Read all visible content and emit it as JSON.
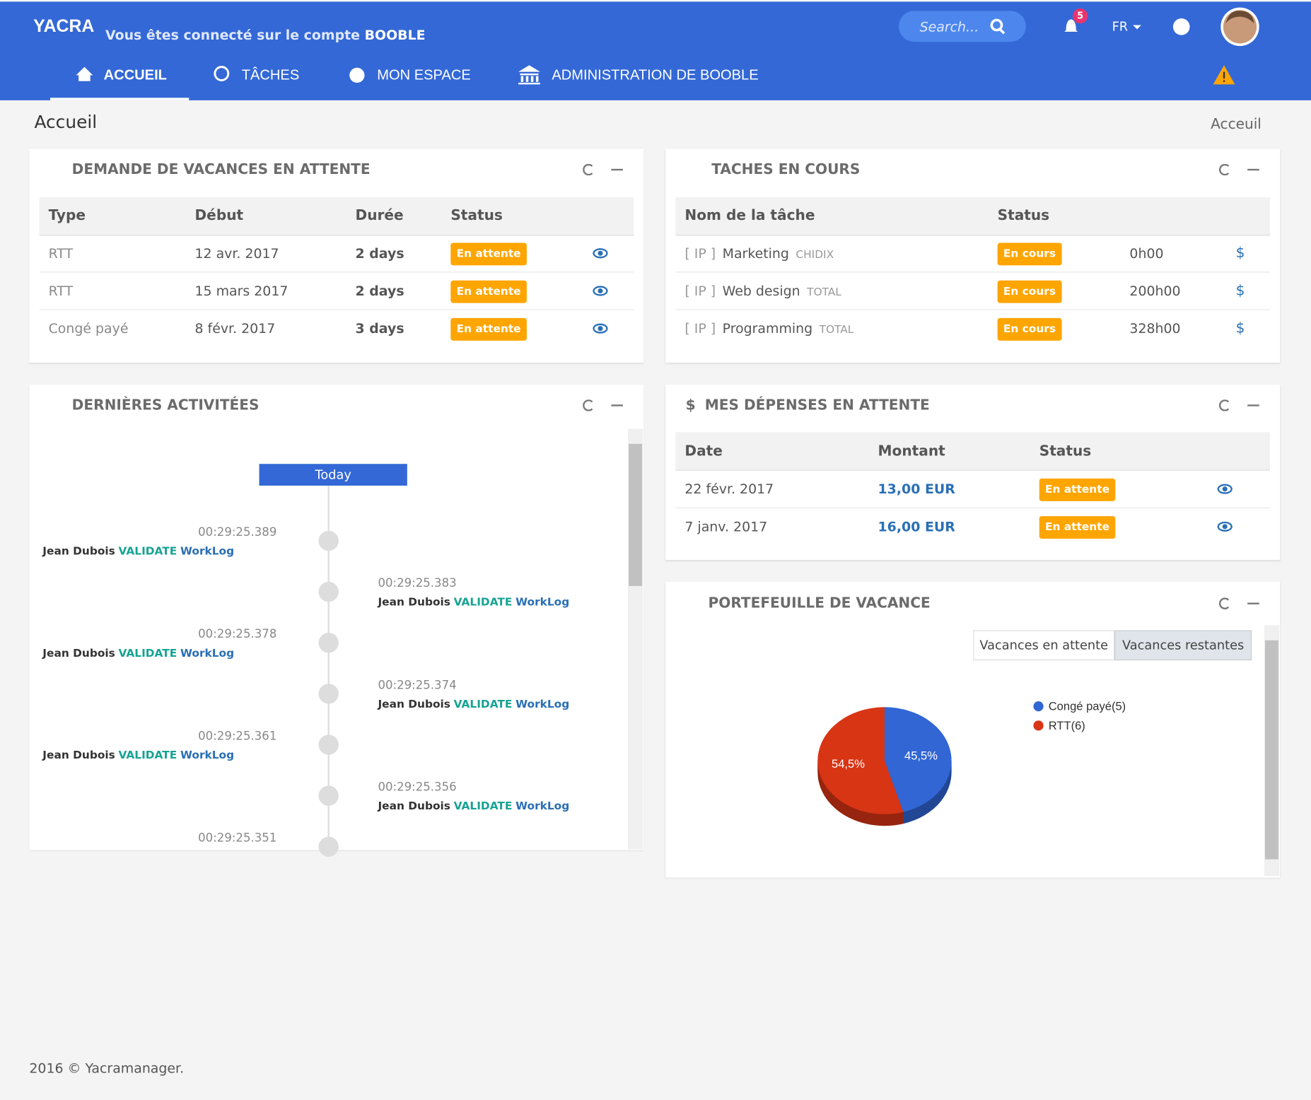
{
  "header": {
    "logo": "YACRA",
    "connected": "Vous êtes connecté sur le compte",
    "account": "BOOBLE",
    "search": "Search...",
    "notifications": "5",
    "lang": "FR"
  },
  "nav": [
    "ACCUEIL",
    "TÂCHES",
    "MON ESPACE",
    "ADMINISTRATION DE BOOBLE"
  ],
  "page": {
    "title": "Accueil",
    "breadcrumb": "Acceuil"
  },
  "vacations": {
    "title": "DEMANDE DE VACANCES EN ATTENTE",
    "columns": [
      "Type",
      "Début",
      "Durée",
      "Status"
    ],
    "rows": [
      [
        "RTT",
        "12 avr. 2017",
        "2 days",
        "En attente"
      ],
      [
        "RTT",
        "15 mars 2017",
        "2 days",
        "En attente"
      ],
      [
        "Congé payé",
        "8 févr. 2017",
        "3 days",
        "En attente"
      ]
    ]
  },
  "tasks": {
    "title": "TACHES EN COURS",
    "columns": [
      "Nom de la tâche",
      "Status"
    ],
    "rows": [
      {
        "prefix": "[ IP ]",
        "name": "Marketing",
        "client": "CHIDIX",
        "status": "En cours",
        "time": "0h00",
        "currency": "$"
      },
      {
        "prefix": "[ IP ]",
        "name": "Web design",
        "client": "TOTAL",
        "status": "En cours",
        "time": "200h00",
        "currency": "$"
      },
      {
        "prefix": "[ IP ]",
        "name": "Programming",
        "client": "TOTAL",
        "status": "En cours",
        "time": "328h00",
        "currency": "$"
      }
    ]
  },
  "activities": {
    "title": "DERNIÈRES ACTIVITÉES",
    "today": "Today",
    "items": [
      {
        "time": "00:29:25.389",
        "user": "Jean Dubois",
        "action": "VALIDATE",
        "object": "WorkLog"
      },
      {
        "time": "00:29:25.383",
        "user": "Jean Dubois",
        "action": "VALIDATE",
        "object": "WorkLog"
      },
      {
        "time": "00:29:25.378",
        "user": "Jean Dubois",
        "action": "VALIDATE",
        "object": "WorkLog"
      },
      {
        "time": "00:29:25.374",
        "user": "Jean Dubois",
        "action": "VALIDATE",
        "object": "WorkLog"
      },
      {
        "time": "00:29:25.361",
        "user": "Jean Dubois",
        "action": "VALIDATE",
        "object": "WorkLog"
      },
      {
        "time": "00:29:25.356",
        "user": "Jean Dubois",
        "action": "VALIDATE",
        "object": "WorkLog"
      },
      {
        "time": "00:29:25.351"
      }
    ]
  },
  "expenses": {
    "icon": "$",
    "title": "MES DÉPENSES EN ATTENTE",
    "columns": [
      "Date",
      "Montant",
      "Status"
    ],
    "rows": [
      [
        "22 févr. 2017",
        "13,00 EUR",
        "En attente"
      ],
      [
        "7 janv. 2017",
        "16,00 EUR",
        "En attente"
      ]
    ]
  },
  "portfolio": {
    "title": "PORTEFEUILLE DE VACANCE",
    "tabs": [
      "Vacances en attente",
      "Vacances restantes"
    ],
    "chart_data": {
      "type": "pie",
      "categories": [
        "Congé payé(5)",
        "RTT(6)"
      ],
      "values": [
        45.5,
        54.5
      ],
      "value_labels": [
        "45,5%",
        "54,5%"
      ],
      "colors": [
        "#3166d4",
        "#d83515"
      ]
    }
  },
  "footer": "2016 © Yacramanager."
}
